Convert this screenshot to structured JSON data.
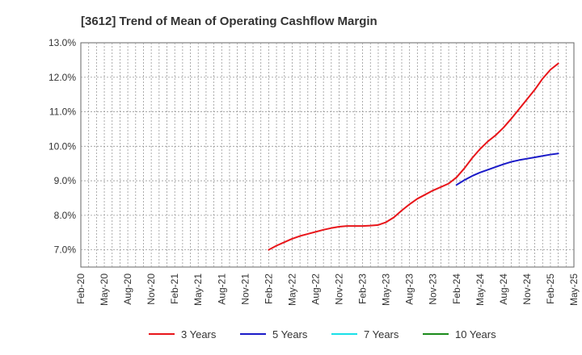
{
  "chart_data": {
    "type": "line",
    "title": "[3612]  Trend of Mean of Operating Cashflow Margin",
    "xlabel": "",
    "ylabel": "",
    "x_ticks": [
      "Feb-20",
      "May-20",
      "Aug-20",
      "Nov-20",
      "Feb-21",
      "May-21",
      "Aug-21",
      "Nov-21",
      "Feb-22",
      "May-22",
      "Aug-22",
      "Nov-22",
      "Feb-23",
      "May-23",
      "Aug-23",
      "Nov-23",
      "Feb-24",
      "May-24",
      "Aug-24",
      "Nov-24",
      "Feb-25",
      "May-25"
    ],
    "x_range": [
      "2020-02",
      "2025-05"
    ],
    "y_ticks": [
      "7.0%",
      "8.0%",
      "9.0%",
      "10.0%",
      "11.0%",
      "12.0%",
      "13.0%"
    ],
    "ylim": [
      6.5,
      13.0
    ],
    "grid": true,
    "legend_position": "bottom",
    "series": [
      {
        "name": "3 Years",
        "color": "#e8151a",
        "points": [
          [
            "2022-02",
            7.0
          ],
          [
            "2022-03",
            7.12
          ],
          [
            "2022-04",
            7.22
          ],
          [
            "2022-05",
            7.32
          ],
          [
            "2022-06",
            7.4
          ],
          [
            "2022-07",
            7.46
          ],
          [
            "2022-08",
            7.52
          ],
          [
            "2022-09",
            7.58
          ],
          [
            "2022-10",
            7.63
          ],
          [
            "2022-11",
            7.67
          ],
          [
            "2022-12",
            7.69
          ],
          [
            "2023-01",
            7.69
          ],
          [
            "2023-02",
            7.69
          ],
          [
            "2023-03",
            7.7
          ],
          [
            "2023-04",
            7.72
          ],
          [
            "2023-05",
            7.8
          ],
          [
            "2023-06",
            7.94
          ],
          [
            "2023-07",
            8.14
          ],
          [
            "2023-08",
            8.32
          ],
          [
            "2023-09",
            8.48
          ],
          [
            "2023-10",
            8.6
          ],
          [
            "2023-11",
            8.72
          ],
          [
            "2023-12",
            8.82
          ],
          [
            "2024-01",
            8.92
          ],
          [
            "2024-02",
            9.1
          ],
          [
            "2024-03",
            9.36
          ],
          [
            "2024-04",
            9.66
          ],
          [
            "2024-05",
            9.92
          ],
          [
            "2024-06",
            10.14
          ],
          [
            "2024-07",
            10.32
          ],
          [
            "2024-08",
            10.54
          ],
          [
            "2024-09",
            10.8
          ],
          [
            "2024-10",
            11.08
          ],
          [
            "2024-11",
            11.36
          ],
          [
            "2024-12",
            11.64
          ],
          [
            "2025-01",
            11.96
          ],
          [
            "2025-02",
            12.22
          ],
          [
            "2025-03",
            12.4
          ]
        ]
      },
      {
        "name": "5 Years",
        "color": "#1a1ac8",
        "points": [
          [
            "2024-02",
            8.88
          ],
          [
            "2024-03",
            9.02
          ],
          [
            "2024-04",
            9.14
          ],
          [
            "2024-05",
            9.24
          ],
          [
            "2024-06",
            9.32
          ],
          [
            "2024-07",
            9.4
          ],
          [
            "2024-08",
            9.48
          ],
          [
            "2024-09",
            9.55
          ],
          [
            "2024-10",
            9.6
          ],
          [
            "2024-11",
            9.64
          ],
          [
            "2024-12",
            9.68
          ],
          [
            "2025-01",
            9.72
          ],
          [
            "2025-02",
            9.76
          ],
          [
            "2025-03",
            9.79
          ]
        ]
      },
      {
        "name": "7 Years",
        "color": "#19e0e8",
        "points": []
      },
      {
        "name": "10 Years",
        "color": "#1a8a1a",
        "points": []
      }
    ]
  }
}
